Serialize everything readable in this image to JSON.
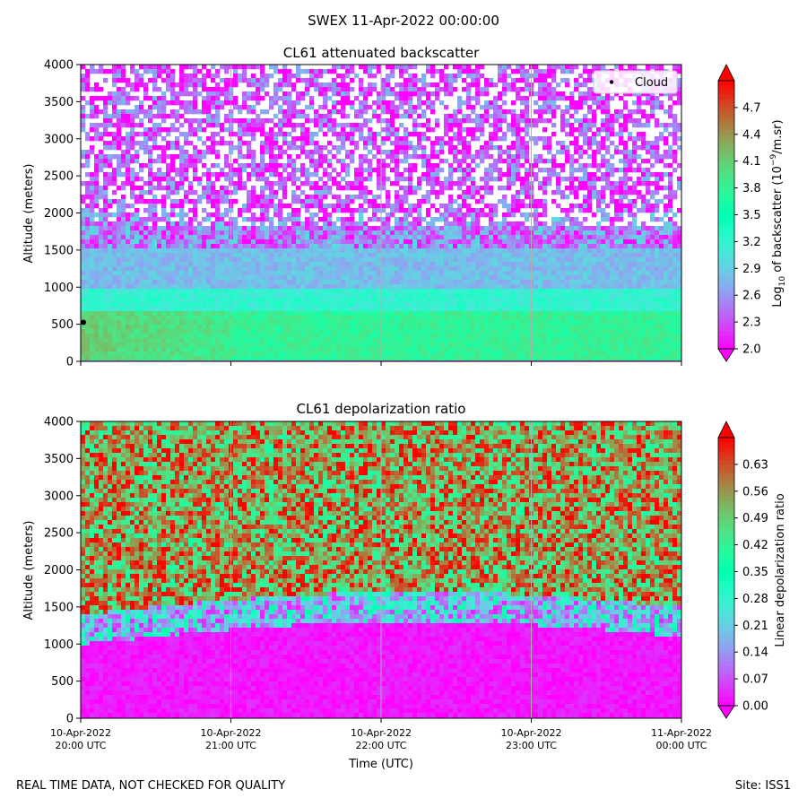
{
  "figure": {
    "title": "SWEX 11-Apr-2022 00:00:00",
    "footer_left": "REAL TIME DATA, NOT CHECKED FOR QUALITY",
    "footer_right": "Site: ISS1"
  },
  "chart_data": [
    {
      "type": "heatmap",
      "title": "CL61 attenuated backscatter",
      "xlabel": "",
      "ylabel": "Altitude (meters)",
      "ylim": [
        0,
        4000
      ],
      "yticks": [
        0,
        500,
        1000,
        1500,
        2000,
        2500,
        3000,
        3500,
        4000
      ],
      "xticks": [
        "10-Apr-2022 20:00 UTC",
        "10-Apr-2022 21:00 UTC",
        "10-Apr-2022 22:00 UTC",
        "10-Apr-2022 23:00 UTC",
        "11-Apr-2022 00:00 UTC"
      ],
      "x_tick_labels_shown": false,
      "grid": "vertical",
      "colormap": "rainbow",
      "colorbar": {
        "label": "Log10 of backscatter (10^-9/m.sr)",
        "range": [
          2.0,
          5.0
        ],
        "ticks": [
          2.0,
          2.3,
          2.6,
          2.9,
          3.2,
          3.5,
          3.8,
          4.1,
          4.4,
          4.7
        ],
        "extend": "both"
      },
      "legend": {
        "position": "top-right",
        "entries": [
          "Cloud"
        ]
      },
      "cloud_points": [
        {
          "time": "10-Apr-2022 20:00 UTC",
          "altitude": 525
        }
      ],
      "profile": [
        {
          "altitude_min": 0,
          "altitude_max": 700,
          "value": 3.8
        },
        {
          "altitude_min": 700,
          "altitude_max": 1000,
          "value": 3.2
        },
        {
          "altitude_min": 1000,
          "altitude_max": 1500,
          "value": 2.8
        },
        {
          "altitude_min": 1500,
          "altitude_max": 2000,
          "value": 2.5
        },
        {
          "altitude_min": 2000,
          "altitude_max": 4000,
          "value": 2.3
        }
      ]
    },
    {
      "type": "heatmap",
      "title": "CL61 depolarization ratio",
      "xlabel": "Time (UTC)",
      "ylabel": "Altitude (meters)",
      "ylim": [
        0,
        4000
      ],
      "yticks": [
        0,
        500,
        1000,
        1500,
        2000,
        2500,
        3000,
        3500,
        4000
      ],
      "xticks": [
        "10-Apr-2022 20:00 UTC",
        "10-Apr-2022 21:00 UTC",
        "10-Apr-2022 22:00 UTC",
        "10-Apr-2022 23:00 UTC",
        "11-Apr-2022 00:00 UTC"
      ],
      "x_tick_labels_shown": true,
      "grid": "vertical",
      "colormap": "rainbow",
      "colorbar": {
        "label": "Linear depolarization ratio",
        "range": [
          0.0,
          0.7
        ],
        "ticks": [
          0.0,
          0.07,
          0.14,
          0.21,
          0.28,
          0.35,
          0.42,
          0.49,
          0.56,
          0.63
        ],
        "extend": "both"
      },
      "profile": [
        {
          "altitude_min": 0,
          "altitude_max": 1000,
          "value": 0.02
        },
        {
          "altitude_min": 1000,
          "altitude_max": 1400,
          "value": 0.2
        },
        {
          "altitude_min": 1400,
          "altitude_max": 2000,
          "value": 0.45
        },
        {
          "altitude_min": 2000,
          "altitude_max": 4000,
          "value": 0.55
        }
      ]
    }
  ]
}
